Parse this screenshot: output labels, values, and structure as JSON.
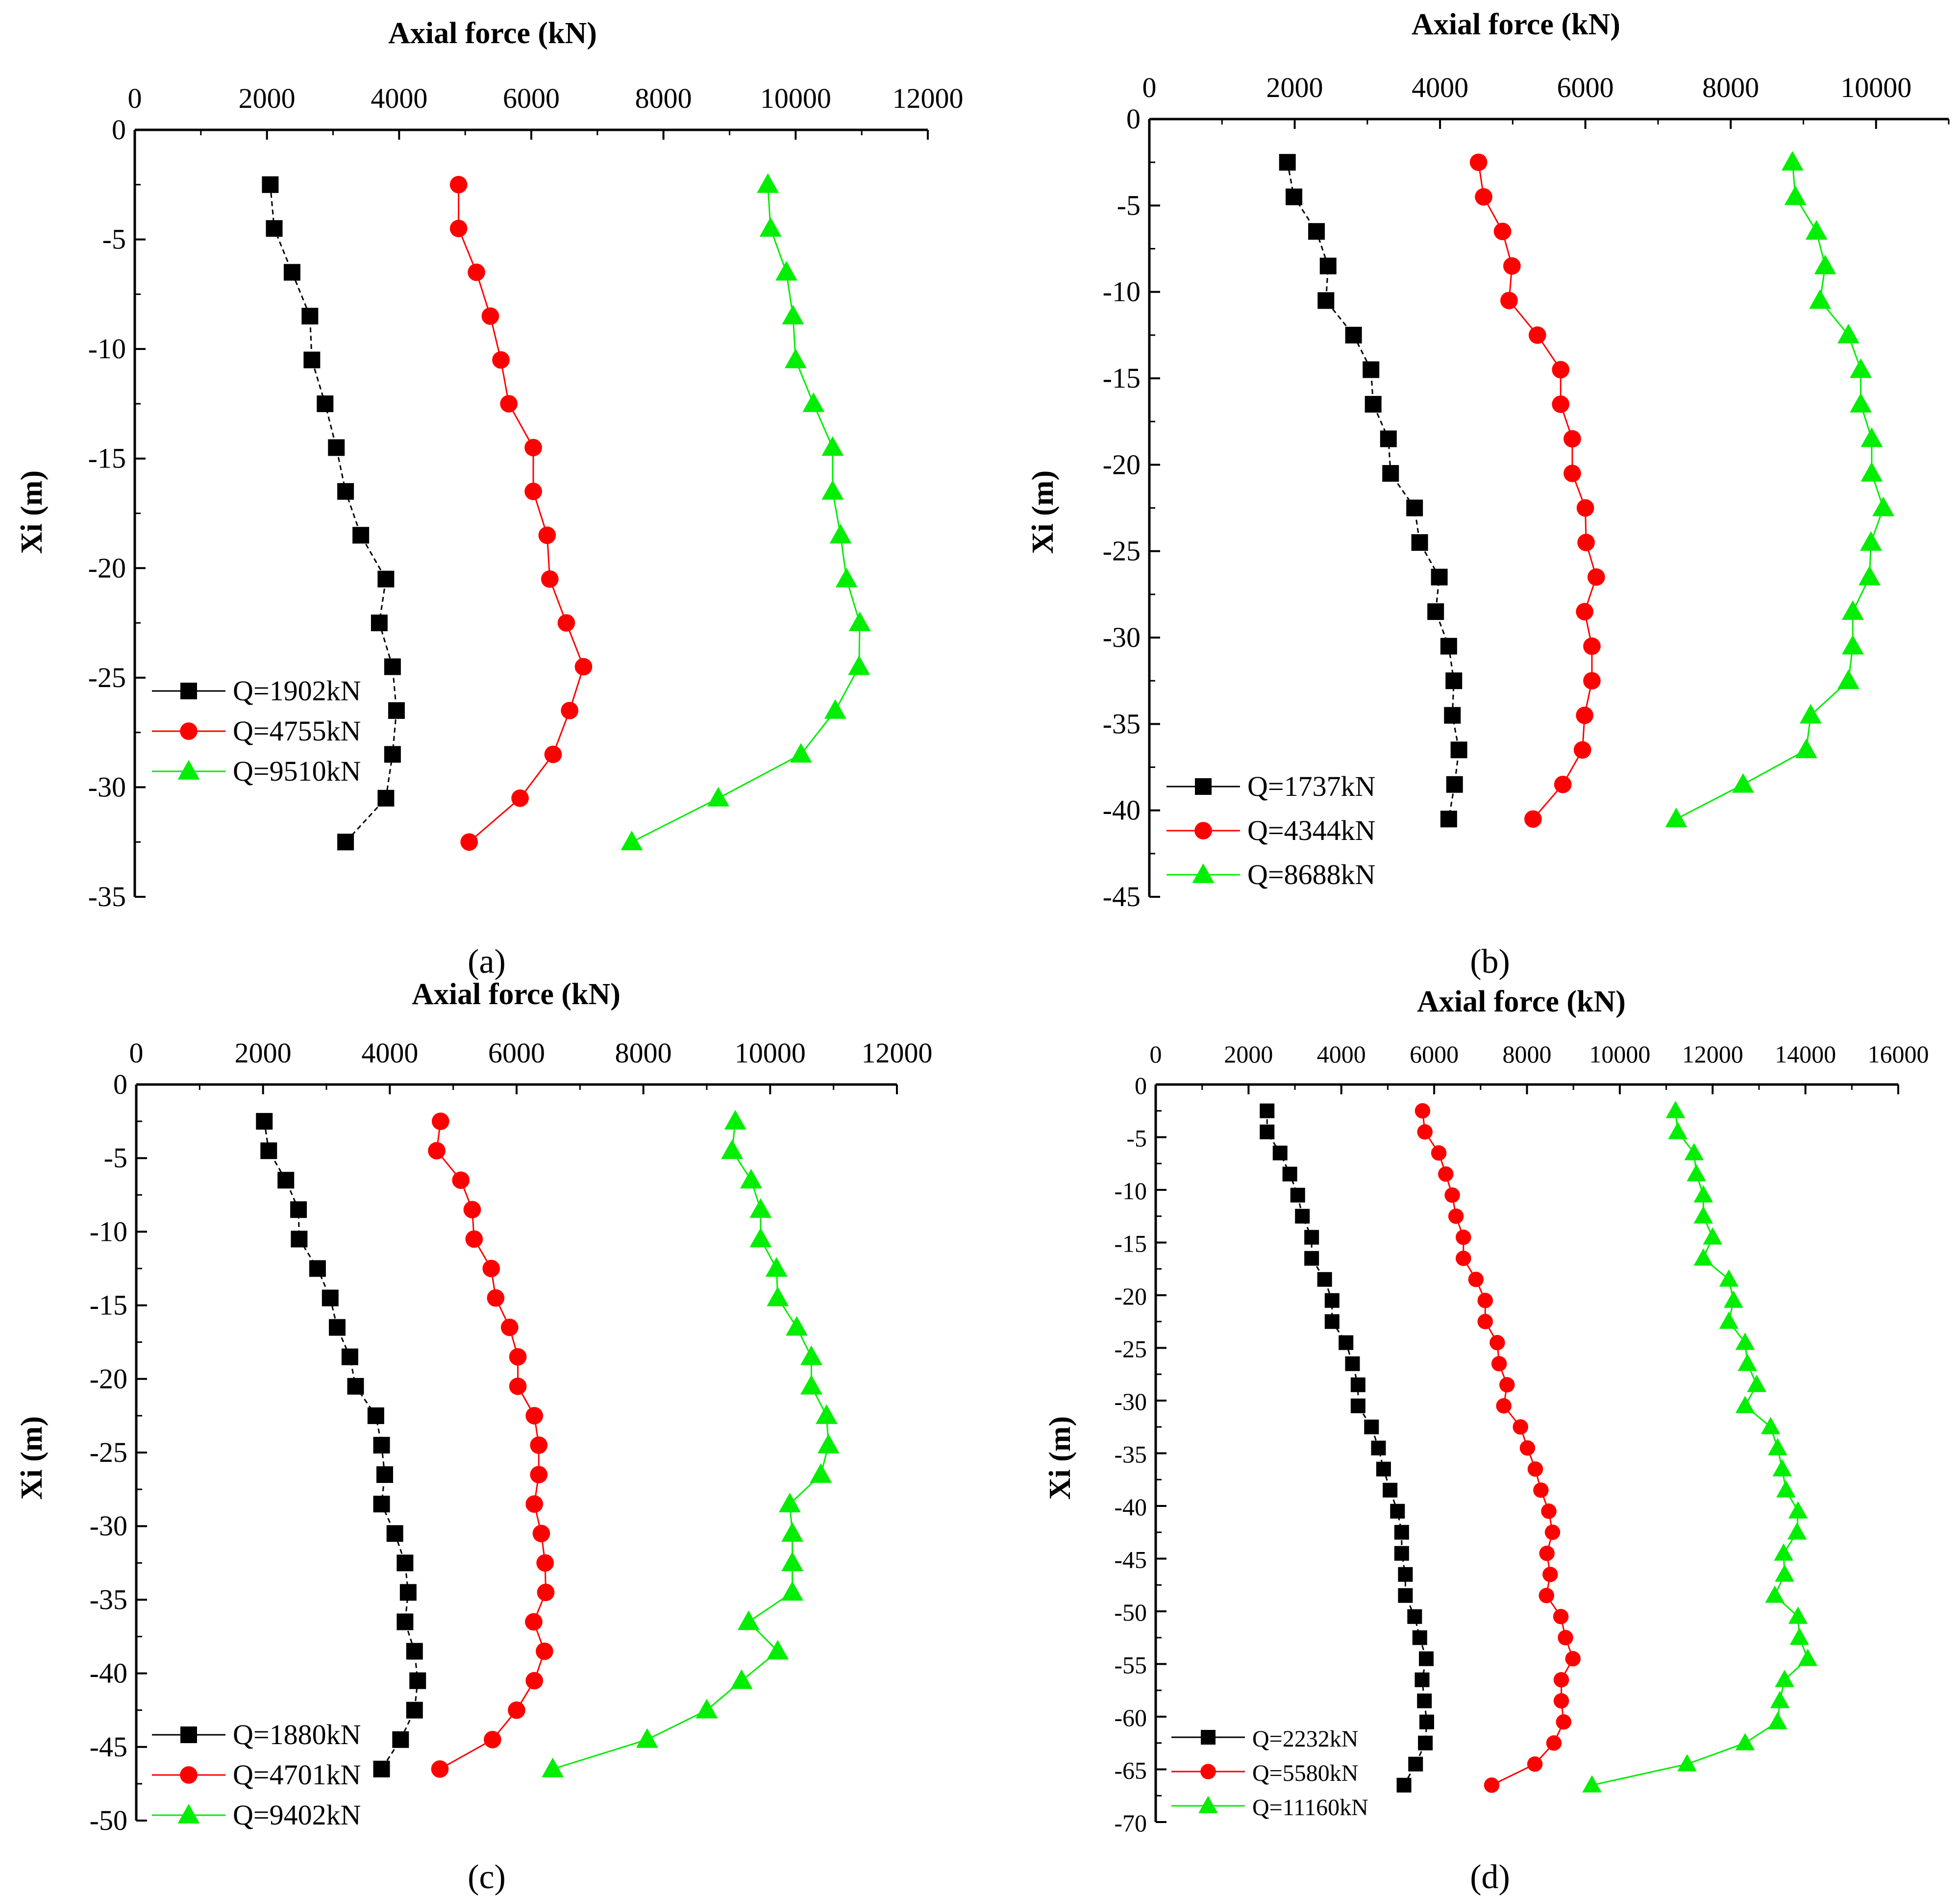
{
  "figure": {
    "type": "multi-panel line chart",
    "colors": {
      "series1": "#000000",
      "series2": "#ff0000",
      "series3": "#00ee00"
    },
    "markers": [
      "square",
      "circle",
      "triangle"
    ]
  },
  "chart_data": [
    {
      "panel": "(a)",
      "type": "line",
      "xlabel": "Axial force (kN)",
      "ylabel": "Xi (m)",
      "xlim": [
        0,
        12000
      ],
      "ylim": [
        -35,
        0
      ],
      "xticks": [
        0,
        2000,
        4000,
        6000,
        8000,
        10000,
        12000
      ],
      "yticks": [
        0,
        -5,
        -10,
        -15,
        -20,
        -25,
        -30,
        -35
      ],
      "legend_position": "lower-left",
      "depth": [
        -2.5,
        -4.5,
        -6.5,
        -8.5,
        -10.5,
        -12.5,
        -14.5,
        -16.5,
        -18.5,
        -20.5,
        -22.5,
        -24.5,
        -26.5,
        -28.5,
        -30.5,
        -32.5
      ],
      "series": [
        {
          "name": "Q=1902kN",
          "values": [
            2050,
            2110,
            2380,
            2650,
            2680,
            2880,
            3050,
            3190,
            3420,
            3800,
            3700,
            3900,
            3960,
            3900,
            3800,
            3190
          ]
        },
        {
          "name": "Q=4755kN",
          "values": [
            4900,
            4900,
            5170,
            5380,
            5540,
            5660,
            6030,
            6030,
            6240,
            6280,
            6530,
            6790,
            6580,
            6330,
            5830,
            5060
          ]
        },
        {
          "name": "Q=9510kN",
          "values": [
            9580,
            9620,
            9860,
            9960,
            10000,
            10270,
            10560,
            10560,
            10680,
            10770,
            10970,
            10960,
            10600,
            10080,
            8830,
            7520
          ]
        }
      ]
    },
    {
      "panel": "(b)",
      "type": "line",
      "xlabel": "Axial force (kN)",
      "ylabel": "Xi (m)",
      "xlim": [
        0,
        11000
      ],
      "ylim": [
        -45,
        0
      ],
      "xticks": [
        0,
        2000,
        4000,
        6000,
        8000,
        10000
      ],
      "yticks": [
        0,
        -5,
        -10,
        -15,
        -20,
        -25,
        -30,
        -35,
        -40,
        -45
      ],
      "legend_position": "lower-left",
      "depth": [
        -2.5,
        -4.5,
        -6.5,
        -8.5,
        -10.5,
        -12.5,
        -14.5,
        -16.5,
        -18.5,
        -20.5,
        -22.5,
        -24.5,
        -26.5,
        -28.5,
        -30.5,
        -32.5,
        -34.5,
        -36.5,
        -38.5,
        -40.5
      ],
      "series": [
        {
          "name": "Q=1737kN",
          "values": [
            1900,
            1990,
            2300,
            2460,
            2430,
            2810,
            3050,
            3080,
            3290,
            3320,
            3650,
            3720,
            3990,
            3940,
            4120,
            4190,
            4170,
            4260,
            4200,
            4120
          ]
        },
        {
          "name": "Q=4344kN",
          "values": [
            4530,
            4600,
            4860,
            4990,
            4950,
            5340,
            5660,
            5660,
            5820,
            5820,
            6000,
            6010,
            6150,
            5990,
            6090,
            6090,
            5990,
            5960,
            5690,
            5280
          ]
        },
        {
          "name": "Q=8688kN",
          "values": [
            8850,
            8890,
            9180,
            9300,
            9230,
            9620,
            9790,
            9790,
            9940,
            9940,
            10100,
            9930,
            9910,
            9680,
            9680,
            9620,
            9100,
            9040,
            8170,
            7250
          ]
        }
      ]
    },
    {
      "panel": "(c)",
      "type": "line",
      "xlabel": "Axial force (kN)",
      "ylabel": "Xi (m)",
      "xlim": [
        0,
        12000
      ],
      "ylim": [
        -50,
        0
      ],
      "xticks": [
        0,
        2000,
        4000,
        6000,
        8000,
        10000,
        12000
      ],
      "yticks": [
        0,
        -5,
        -10,
        -15,
        -20,
        -25,
        -30,
        -35,
        -40,
        -45,
        -50
      ],
      "legend_position": "lower-left",
      "depth": [
        -2.5,
        -4.5,
        -6.5,
        -8.5,
        -10.5,
        -12.5,
        -14.5,
        -16.5,
        -18.5,
        -20.5,
        -22.5,
        -24.5,
        -26.5,
        -28.5,
        -30.5,
        -32.5,
        -34.5,
        -36.5,
        -38.5,
        -40.5,
        -42.5,
        -44.5,
        -46.5
      ],
      "series": [
        {
          "name": "Q=1880kN",
          "values": [
            2020,
            2090,
            2360,
            2560,
            2570,
            2860,
            3060,
            3170,
            3370,
            3460,
            3780,
            3870,
            3920,
            3870,
            4080,
            4240,
            4290,
            4240,
            4390,
            4440,
            4390,
            4170,
            3870
          ]
        },
        {
          "name": "Q=4701kN",
          "values": [
            4800,
            4740,
            5120,
            5300,
            5330,
            5600,
            5670,
            5890,
            6020,
            6020,
            6280,
            6350,
            6350,
            6280,
            6390,
            6450,
            6460,
            6270,
            6440,
            6280,
            6000,
            5620,
            4790
          ]
        },
        {
          "name": "Q=9402kN",
          "values": [
            9450,
            9400,
            9700,
            9850,
            9850,
            10100,
            10120,
            10420,
            10650,
            10650,
            10890,
            10920,
            10800,
            10310,
            10350,
            10350,
            10350,
            9660,
            10120,
            9550,
            9000,
            8060,
            6570
          ]
        }
      ]
    },
    {
      "panel": "(d)",
      "type": "line",
      "xlabel": "Axial force (kN)",
      "ylabel": "Xi (m)",
      "xlim": [
        0,
        16000
      ],
      "ylim": [
        -70,
        0
      ],
      "xticks": [
        0,
        2000,
        4000,
        6000,
        8000,
        10000,
        12000,
        14000,
        16000
      ],
      "yticks": [
        0,
        -5,
        -10,
        -15,
        -20,
        -25,
        -30,
        -35,
        -40,
        -45,
        -50,
        -55,
        -60,
        -65,
        -70
      ],
      "legend_position": "lower-left",
      "depth": [
        -2.5,
        -4.5,
        -6.5,
        -8.5,
        -10.5,
        -12.5,
        -14.5,
        -16.5,
        -18.5,
        -20.5,
        -22.5,
        -24.5,
        -26.5,
        -28.5,
        -30.5,
        -32.5,
        -34.5,
        -36.5,
        -38.5,
        -40.5,
        -42.5,
        -44.5,
        -46.5,
        -48.5,
        -50.5,
        -52.5,
        -54.5,
        -56.5,
        -58.5,
        -60.5,
        -62.5,
        -64.5,
        -66.5
      ],
      "series": [
        {
          "name": "Q=2232kN",
          "values": [
            2400,
            2400,
            2680,
            2890,
            3060,
            3160,
            3360,
            3360,
            3640,
            3800,
            3800,
            4100,
            4240,
            4360,
            4360,
            4650,
            4800,
            4910,
            5050,
            5210,
            5300,
            5300,
            5380,
            5380,
            5580,
            5690,
            5830,
            5740,
            5790,
            5840,
            5810,
            5600,
            5350
          ]
        },
        {
          "name": "Q=5580kN",
          "values": [
            5750,
            5800,
            6100,
            6250,
            6390,
            6470,
            6630,
            6630,
            6900,
            7100,
            7100,
            7360,
            7400,
            7570,
            7500,
            7860,
            8010,
            8180,
            8300,
            8470,
            8550,
            8430,
            8500,
            8420,
            8730,
            8830,
            8990,
            8740,
            8740,
            8790,
            8580,
            8170,
            7240
          ]
        },
        {
          "name": "Q=11160kN",
          "values": [
            11200,
            11250,
            11600,
            11650,
            11800,
            11800,
            12000,
            11800,
            12350,
            12450,
            12350,
            12700,
            12750,
            12950,
            12700,
            13250,
            13400,
            13500,
            13580,
            13840,
            13820,
            13530,
            13550,
            13340,
            13840,
            13870,
            14050,
            13550,
            13450,
            13400,
            12700,
            11450,
            9400
          ]
        }
      ]
    }
  ],
  "captions": [
    "(a)",
    "(b)",
    "(c)",
    "(d)"
  ]
}
